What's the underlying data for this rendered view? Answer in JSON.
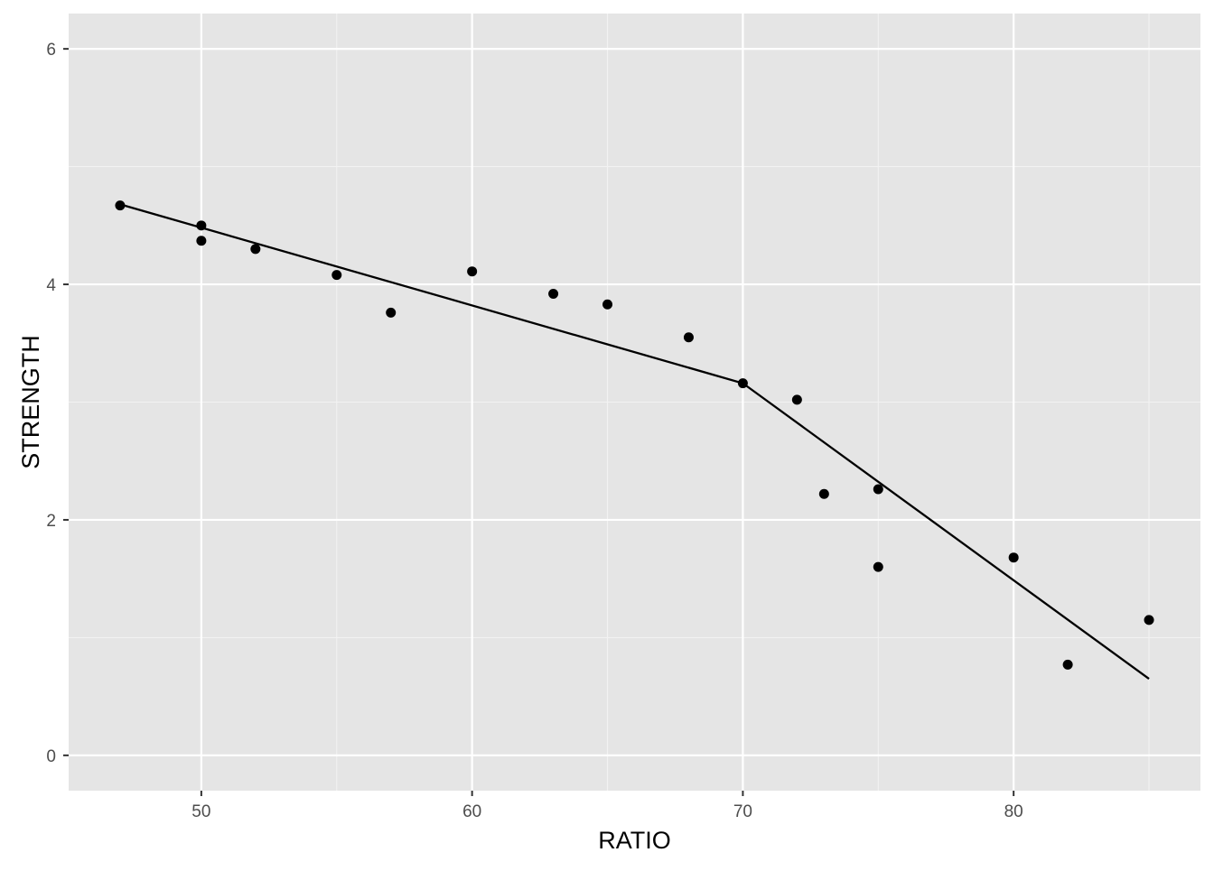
{
  "colors": {
    "panel_background": "#e5e5e5",
    "grid_major": "#ffffff",
    "grid_minor": "#f2f2f2",
    "points": "#000000",
    "line": "#000000",
    "tick_label": "#4d4d4d",
    "tick_mark": "#333333",
    "axis_title": "#000000"
  },
  "chart_data": {
    "type": "scatter",
    "title": "",
    "xlabel": "RATIO",
    "ylabel": "STRENGTH",
    "xlim": [
      45.1,
      86.9
    ],
    "ylim": [
      -0.3,
      6.3
    ],
    "grid": true,
    "legend": "none",
    "x_ticks": [
      50,
      60,
      70,
      80
    ],
    "x_tick_labels": [
      "50",
      "60",
      "70",
      "80"
    ],
    "x_minor_ticks": [
      55,
      65,
      75,
      85
    ],
    "y_ticks": [
      0,
      2,
      4,
      6
    ],
    "y_tick_labels": [
      "0",
      "2",
      "4",
      "6"
    ],
    "y_minor_ticks": [
      1,
      3,
      5
    ],
    "series": [
      {
        "kind": "points",
        "x": [
          47,
          50,
          50,
          52,
          55,
          57,
          60,
          63,
          65,
          68,
          70,
          72,
          73,
          75,
          75,
          80,
          82,
          85
        ],
        "y": [
          4.67,
          4.5,
          4.37,
          4.3,
          4.08,
          3.76,
          4.11,
          3.92,
          3.83,
          3.55,
          3.16,
          3.02,
          2.22,
          2.26,
          1.6,
          1.68,
          0.77,
          1.15
        ]
      },
      {
        "kind": "fitted-line",
        "x": [
          47,
          70,
          85
        ],
        "y": [
          4.68,
          3.16,
          0.65
        ]
      }
    ]
  }
}
